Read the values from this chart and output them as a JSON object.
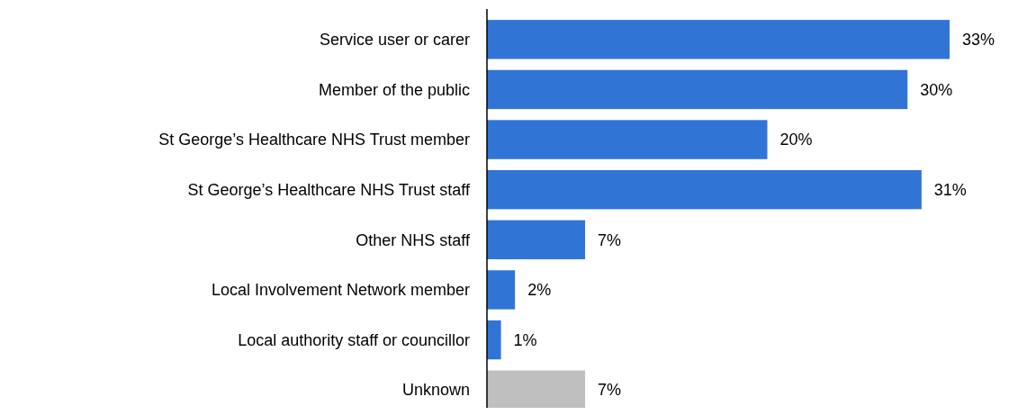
{
  "chart_data": {
    "type": "bar",
    "orientation": "horizontal",
    "categories": [
      "Service user or carer",
      "Member of the public",
      "St George’s Healthcare NHS Trust member",
      "St George’s Healthcare NHS Trust staff",
      "Other NHS staff",
      "Local Involvement Network member",
      "Local authority staff or councillor",
      "Unknown"
    ],
    "values": [
      33,
      30,
      20,
      31,
      7,
      2,
      1,
      7
    ],
    "colors": [
      "#3075d6",
      "#3075d6",
      "#3075d6",
      "#3075d6",
      "#3075d6",
      "#3075d6",
      "#3075d6",
      "#bfbfbf"
    ],
    "value_labels": [
      "33%",
      "30%",
      "20%",
      "31%",
      "7%",
      "2%",
      "1%",
      "7%"
    ]
  }
}
